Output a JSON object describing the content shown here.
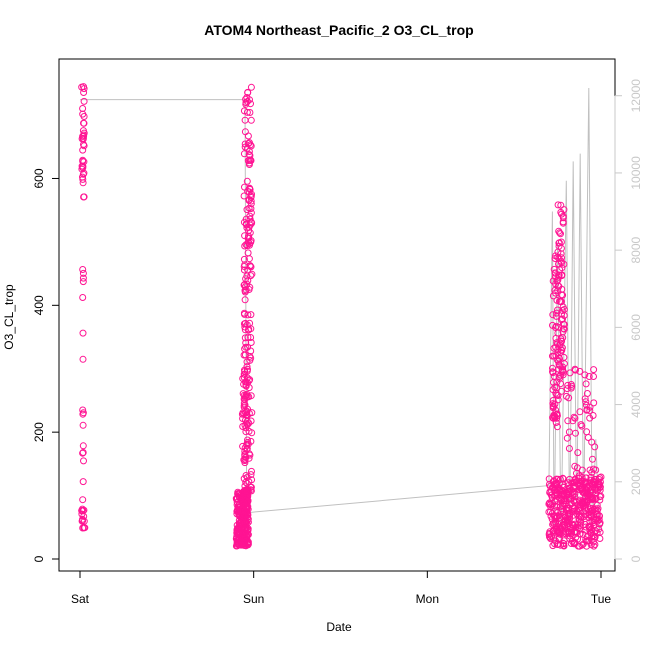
{
  "chart_data": {
    "type": "scatter",
    "title": "ATOM4 Northeast_Pacific_2 O3_CL_trop",
    "xlabel": "Date",
    "ylabel": "O3_CL_trop",
    "x_tick_labels": [
      "Sat",
      "Sun",
      "Mon",
      "Tue"
    ],
    "x_tick_days": [
      0,
      1,
      2,
      3
    ],
    "xlim_days": [
      0,
      3
    ],
    "left_axis": {
      "ticks": [
        0,
        200,
        400,
        600
      ],
      "ylim": [
        0,
        760
      ]
    },
    "right_axis": {
      "label": "",
      "ticks": [
        0,
        2000,
        4000,
        6000,
        8000,
        10000,
        12000
      ],
      "ylim": [
        0,
        12200
      ]
    },
    "scatter_color": "#ff1493",
    "line_color": "#c0c0c0",
    "right_axis_color": "#c8c8c8",
    "point_groups": [
      {
        "name": "sat-dense",
        "x": [
          0.01,
          0.025
        ],
        "y_top": [
          560,
          760
        ],
        "count": 35
      },
      {
        "name": "sat-sparse",
        "x": [
          0.015,
          0.02
        ],
        "y_top": [
          60,
          490
        ],
        "count": 18
      },
      {
        "name": "sat-bottom",
        "x": [
          0.01,
          0.03
        ],
        "y_top": [
          40,
          80
        ],
        "count": 14
      },
      {
        "name": "sun-cluster",
        "x": [
          0.9,
          0.97
        ],
        "y_top": [
          20,
          110
        ],
        "count": 260
      },
      {
        "name": "sun-column",
        "x": [
          0.945,
          0.99
        ],
        "y_top": [
          100,
          745
        ],
        "count": 190
      },
      {
        "name": "sun-mid",
        "x": [
          0.935,
          0.965
        ],
        "y_top": [
          150,
          300
        ],
        "count": 40
      },
      {
        "name": "tue-cluster",
        "x": [
          2.7,
          3.0
        ],
        "y_top": [
          20,
          130
        ],
        "count": 420
      },
      {
        "name": "tue-column-1",
        "x": [
          2.72,
          2.75
        ],
        "y_top": [
          200,
          490
        ],
        "count": 60
      },
      {
        "name": "tue-column-2",
        "x": [
          2.75,
          2.79
        ],
        "y_top": [
          250,
          560
        ],
        "count": 90
      },
      {
        "name": "tue-spikes",
        "x": [
          2.8,
          2.97
        ],
        "y_top": [
          100,
          300
        ],
        "count": 55
      }
    ],
    "altitude_line": [
      [
        0.0,
        11900
      ],
      [
        0.95,
        11900
      ],
      [
        0.96,
        1200
      ],
      [
        2.7,
        1900
      ],
      [
        2.72,
        9000
      ],
      [
        2.73,
        300
      ],
      [
        2.75,
        8200
      ],
      [
        2.77,
        400
      ],
      [
        2.8,
        9800
      ],
      [
        2.82,
        600
      ],
      [
        2.84,
        10300
      ],
      [
        2.86,
        700
      ],
      [
        2.88,
        10500
      ],
      [
        2.9,
        900
      ],
      [
        2.93,
        12200
      ],
      [
        2.95,
        600
      ],
      [
        2.97,
        3100
      ],
      [
        2.99,
        700
      ],
      [
        3.0,
        900
      ]
    ]
  }
}
